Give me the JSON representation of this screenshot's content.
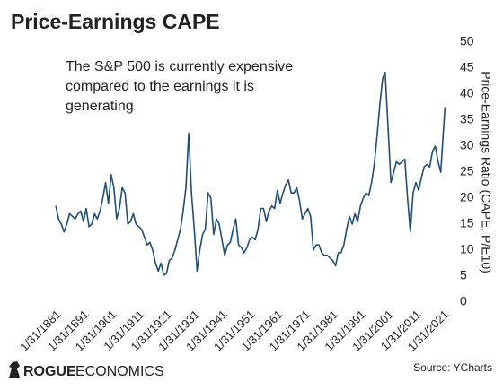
{
  "chart_data": {
    "type": "line",
    "title": "Price-Earnings CAPE",
    "annotation": [
      "The S&P 500 is currently expensive",
      "compared to the earnings it is",
      "generating"
    ],
    "y_label": "Price-Earnings Ratio (CAPE, P/E10)",
    "source": "Source: YCharts",
    "logo": {
      "bold": "ROGUE",
      "rest": "ECONOMICS"
    },
    "xlim": [
      1880,
      2023
    ],
    "xticks": [
      {
        "value": 1881,
        "label": "1/31/1881"
      },
      {
        "value": 1891,
        "label": "1/31/1891"
      },
      {
        "value": 1901,
        "label": "1/31/1901"
      },
      {
        "value": 1911,
        "label": "1/31/1911"
      },
      {
        "value": 1921,
        "label": "1/31/1921"
      },
      {
        "value": 1931,
        "label": "1/31/1931"
      },
      {
        "value": 1941,
        "label": "1/31/1941"
      },
      {
        "value": 1951,
        "label": "1/31/1951"
      },
      {
        "value": 1961,
        "label": "1/31/1961"
      },
      {
        "value": 1971,
        "label": "1/31/1971"
      },
      {
        "value": 1981,
        "label": "1/31/1981"
      },
      {
        "value": 1991,
        "label": "1/31/1991"
      },
      {
        "value": 2001,
        "label": "1/31/2001"
      },
      {
        "value": 2011,
        "label": "1/31/2011"
      },
      {
        "value": 2021,
        "label": "1/31/2021"
      }
    ],
    "ylim": [
      0,
      50
    ],
    "yticks": [
      0,
      5,
      10,
      15,
      20,
      25,
      30,
      35,
      40,
      45,
      50
    ],
    "grid": false,
    "y_axis_side": "right",
    "series": [
      {
        "name": "CAPE",
        "color": "#1f4e79",
        "x": [
          1881,
          1882,
          1883,
          1884,
          1885,
          1886,
          1887,
          1888,
          1889,
          1890,
          1891,
          1892,
          1893,
          1894,
          1895,
          1896,
          1897,
          1898,
          1899,
          1900,
          1901,
          1902,
          1903,
          1904,
          1905,
          1906,
          1907,
          1908,
          1909,
          1910,
          1911,
          1912,
          1913,
          1914,
          1915,
          1916,
          1917,
          1918,
          1919,
          1920,
          1921,
          1922,
          1923,
          1924,
          1925,
          1926,
          1927,
          1928,
          1929,
          1930,
          1931,
          1932,
          1933,
          1934,
          1935,
          1936,
          1937,
          1938,
          1939,
          1940,
          1941,
          1942,
          1943,
          1944,
          1945,
          1946,
          1947,
          1948,
          1949,
          1950,
          1951,
          1952,
          1953,
          1954,
          1955,
          1956,
          1957,
          1958,
          1959,
          1960,
          1961,
          1962,
          1963,
          1964,
          1965,
          1966,
          1967,
          1968,
          1969,
          1970,
          1971,
          1972,
          1973,
          1974,
          1975,
          1976,
          1977,
          1978,
          1979,
          1980,
          1981,
          1982,
          1983,
          1984,
          1985,
          1986,
          1987,
          1988,
          1989,
          1990,
          1991,
          1992,
          1993,
          1994,
          1995,
          1996,
          1997,
          1998,
          1999,
          1999.9,
          2001,
          2002,
          2003,
          2004,
          2005,
          2006,
          2007,
          2008,
          2009,
          2010,
          2011,
          2012,
          2013,
          2014,
          2015,
          2016,
          2017,
          2018,
          2019,
          2020,
          2020.7,
          2021.5
        ],
        "values": [
          18.5,
          16,
          15,
          13.5,
          15,
          17,
          16.5,
          16,
          17,
          17.5,
          15.5,
          18,
          14.5,
          15,
          17,
          16,
          17.5,
          20,
          23,
          19,
          24.5,
          22,
          16,
          18,
          22,
          21,
          15,
          15.5,
          17,
          15,
          14.5,
          14,
          12.5,
          11,
          11.5,
          10,
          7.5,
          6,
          7.5,
          5.2,
          5.5,
          8,
          8.5,
          10,
          12,
          14,
          17.5,
          22,
          32.5,
          21,
          14,
          6,
          10,
          13,
          14,
          21,
          20,
          13,
          16,
          15,
          12,
          9,
          11,
          11.5,
          14,
          16,
          11,
          10.5,
          9.5,
          10.5,
          12,
          12.5,
          12,
          14,
          18,
          18,
          15.5,
          17.5,
          18.5,
          18,
          21.5,
          19,
          21,
          22.5,
          23.5,
          21,
          21,
          22,
          19.5,
          16,
          17,
          18,
          16.5,
          10,
          11,
          11,
          9.5,
          9,
          9,
          8.5,
          8,
          7,
          9.5,
          9.5,
          11,
          14,
          16.5,
          15,
          17,
          15.5,
          18.5,
          20,
          21,
          20.5,
          23,
          26.5,
          32,
          38,
          43,
          44.2,
          33,
          23,
          25,
          27,
          26.5,
          27,
          27.5,
          20,
          13.5,
          21,
          23,
          21.5,
          24,
          26,
          26.5,
          26,
          29,
          30,
          27,
          25,
          31,
          37.5
        ]
      }
    ]
  }
}
